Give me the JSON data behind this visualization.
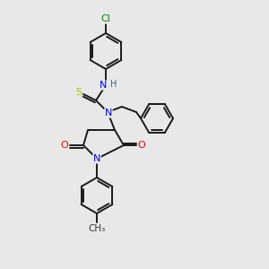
{
  "bg_color": "#e8e8e8",
  "bond_color": "#1a1a1a",
  "atom_colors": {
    "N": "#0000ee",
    "O": "#ee0000",
    "S": "#bbbb00",
    "Cl": "#008800",
    "H": "#336688",
    "C": "#1a1a1a"
  }
}
